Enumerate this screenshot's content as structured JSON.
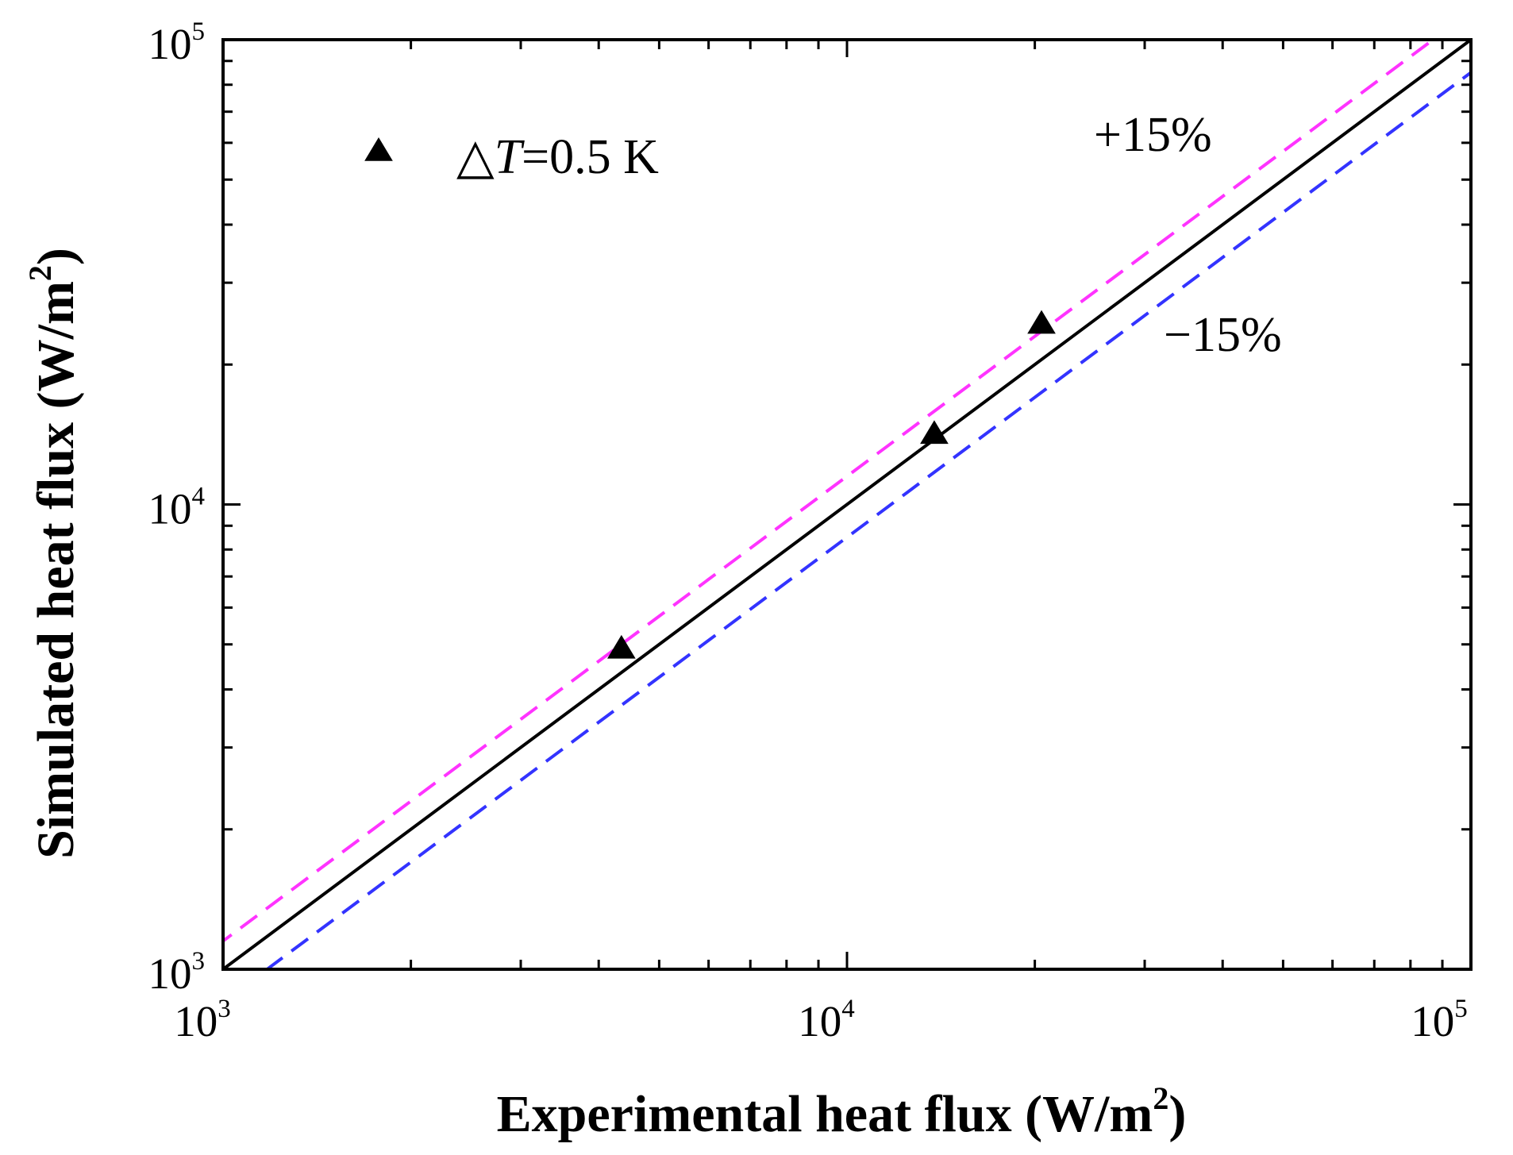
{
  "chart_data": {
    "type": "scatter",
    "xscale": "log",
    "yscale": "log",
    "xlim": [
      1000,
      100000
    ],
    "ylim": [
      1000,
      100000
    ],
    "xlabel_main": "Experimental heat flux (W/m",
    "xlabel_sup": "2",
    "xlabel_end": ")",
    "ylabel_main": "Simulated heat flux (W/m",
    "ylabel_sup": "2",
    "ylabel_end": ")",
    "x_ticks": [
      {
        "base": "10",
        "exp": "3",
        "value": 1000
      },
      {
        "base": "10",
        "exp": "4",
        "value": 10000
      },
      {
        "base": "10",
        "exp": "5",
        "value": 100000
      }
    ],
    "y_ticks": [
      {
        "base": "10",
        "exp": "3",
        "value": 1000
      },
      {
        "base": "10",
        "exp": "4",
        "value": 10000
      },
      {
        "base": "10",
        "exp": "5",
        "value": 100000
      }
    ],
    "series": [
      {
        "name": "ΔT=0.5 K",
        "legend_symbol": "△",
        "legend_var": "T",
        "legend_rest": "=0.5 K",
        "marker": "triangle",
        "color": "#000000",
        "x": [
          4350,
          13800,
          20500
        ],
        "y": [
          4900,
          14200,
          24500
        ]
      }
    ],
    "reference_lines": [
      {
        "name": "y = x",
        "factor": 1.0,
        "color": "#000000",
        "dash": "solid"
      },
      {
        "name": "+15%",
        "factor": 1.15,
        "color": "#ff33ff",
        "dash": "dashed"
      },
      {
        "name": "-15%",
        "factor": 0.85,
        "color": "#3333ff",
        "dash": "dashed"
      }
    ],
    "annotations": [
      {
        "text": "+15%",
        "anchor": "upper"
      },
      {
        "text": "−15%",
        "anchor": "lower"
      }
    ],
    "legend_position": "top-left",
    "grid": false
  }
}
